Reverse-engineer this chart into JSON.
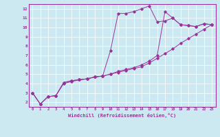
{
  "xlabel": "Windchill (Refroidissement éolien,°C)",
  "bg_color": "#cce8f0",
  "line_color": "#993399",
  "xlim": [
    -0.5,
    23.5
  ],
  "ylim": [
    1.5,
    12.5
  ],
  "xticks": [
    0,
    1,
    2,
    3,
    4,
    5,
    6,
    7,
    8,
    9,
    10,
    11,
    12,
    13,
    14,
    15,
    16,
    17,
    18,
    19,
    20,
    21,
    22,
    23
  ],
  "yticks": [
    2,
    3,
    4,
    5,
    6,
    7,
    8,
    9,
    10,
    11,
    12
  ],
  "series1_x": [
    0,
    1,
    2,
    3,
    4,
    5,
    6,
    7,
    8,
    9,
    10,
    11,
    12,
    13,
    14,
    15,
    16,
    17,
    18,
    19,
    20,
    21,
    22,
    23
  ],
  "series1_y": [
    3.0,
    1.8,
    2.6,
    2.7,
    4.1,
    4.3,
    4.4,
    4.5,
    4.7,
    4.8,
    5.0,
    5.2,
    5.4,
    5.6,
    5.8,
    6.2,
    6.7,
    7.2,
    7.7,
    8.3,
    8.8,
    9.3,
    9.8,
    10.3
  ],
  "series2_x": [
    0,
    1,
    2,
    3,
    4,
    5,
    6,
    7,
    8,
    9,
    10,
    11,
    12,
    13,
    14,
    15,
    16,
    17,
    18,
    19,
    20,
    21,
    22,
    23
  ],
  "series2_y": [
    3.0,
    1.8,
    2.6,
    2.7,
    4.1,
    4.3,
    4.4,
    4.5,
    4.7,
    4.8,
    7.5,
    11.5,
    11.5,
    11.7,
    12.0,
    12.3,
    10.6,
    10.7,
    11.0,
    10.3,
    10.2,
    10.1,
    10.4,
    10.3
  ],
  "series3_x": [
    0,
    1,
    2,
    3,
    4,
    5,
    6,
    7,
    8,
    9,
    10,
    11,
    12,
    13,
    14,
    15,
    16,
    17,
    18,
    19,
    20,
    21,
    22,
    23
  ],
  "series3_y": [
    3.0,
    1.8,
    2.6,
    2.7,
    4.0,
    4.2,
    4.4,
    4.5,
    4.7,
    4.8,
    5.0,
    5.3,
    5.5,
    5.7,
    6.0,
    6.4,
    7.0,
    11.7,
    11.0,
    10.3,
    10.2,
    10.1,
    10.4,
    10.3
  ]
}
